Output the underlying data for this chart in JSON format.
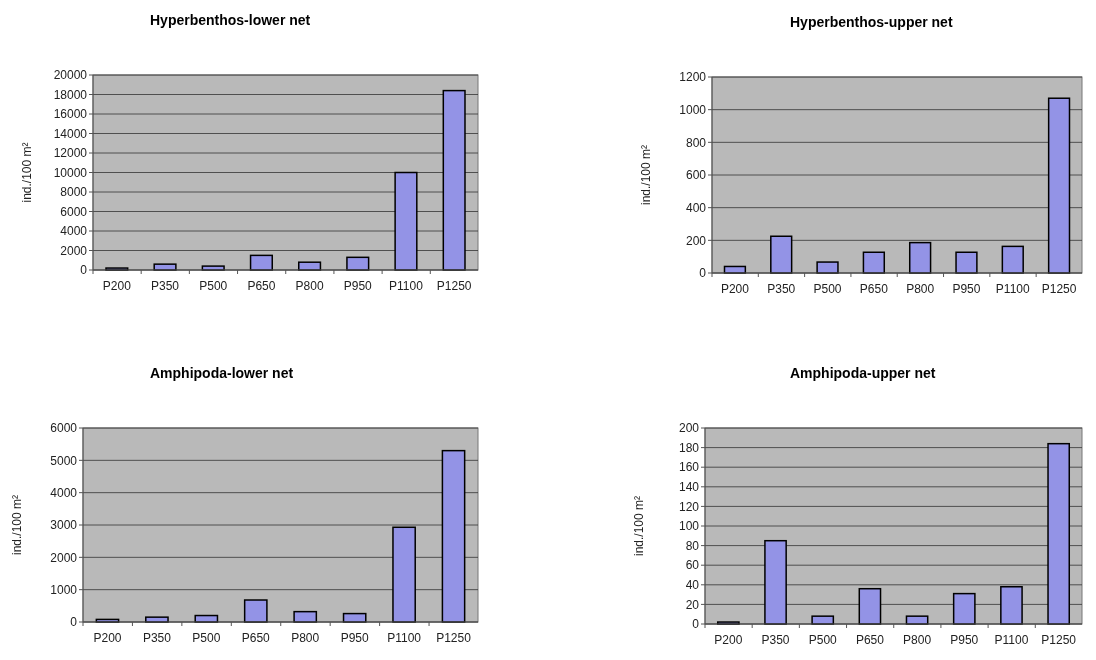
{
  "chart_data": [
    {
      "type": "bar",
      "title": "Hyperbenthos-lower net",
      "ylabel": "ind./100 m²",
      "categories": [
        "P200",
        "P350",
        "P500",
        "P650",
        "P800",
        "P950",
        "P1100",
        "P1250"
      ],
      "values": [
        200,
        600,
        400,
        1500,
        800,
        1300,
        10000,
        18400
      ],
      "color": "#9393e6",
      "ylim": [
        0,
        20000
      ],
      "yticks": [
        0,
        2000,
        4000,
        6000,
        8000,
        10000,
        12000,
        14000,
        16000,
        18000,
        20000
      ],
      "grid": "y"
    },
    {
      "type": "bar",
      "title": "Hyperbenthos-upper net",
      "ylabel": "ind./100 m²",
      "categories": [
        "P200",
        "P350",
        "P500",
        "P650",
        "P800",
        "P950",
        "P1100",
        "P1250"
      ],
      "values": [
        40,
        225,
        67,
        127,
        186,
        127,
        163,
        1070
      ],
      "color": "#9393e6",
      "ylim": [
        0,
        1200
      ],
      "yticks": [
        0,
        200,
        400,
        600,
        800,
        1000,
        1200
      ],
      "grid": "y"
    },
    {
      "type": "bar",
      "title": "Amphipoda-lower net",
      "ylabel": "ind./100 m²",
      "categories": [
        "P200",
        "P350",
        "P500",
        "P650",
        "P800",
        "P950",
        "P1100",
        "P1250"
      ],
      "values": [
        80,
        150,
        200,
        680,
        320,
        260,
        2930,
        5300
      ],
      "color": "#9393e6",
      "ylim": [
        0,
        6000
      ],
      "yticks": [
        0,
        1000,
        2000,
        3000,
        4000,
        5000,
        6000
      ],
      "grid": "y"
    },
    {
      "type": "bar",
      "title": "Amphipoda-upper net",
      "ylabel": "ind./100 m²",
      "categories": [
        "P200",
        "P350",
        "P500",
        "P650",
        "P800",
        "P950",
        "P1100",
        "P1250"
      ],
      "values": [
        2,
        85,
        8,
        36,
        8,
        31,
        38,
        184
      ],
      "color": "#9393e6",
      "ylim": [
        0,
        200
      ],
      "yticks": [
        0,
        20,
        40,
        60,
        80,
        100,
        120,
        140,
        160,
        180,
        200
      ],
      "grid": "y"
    }
  ]
}
